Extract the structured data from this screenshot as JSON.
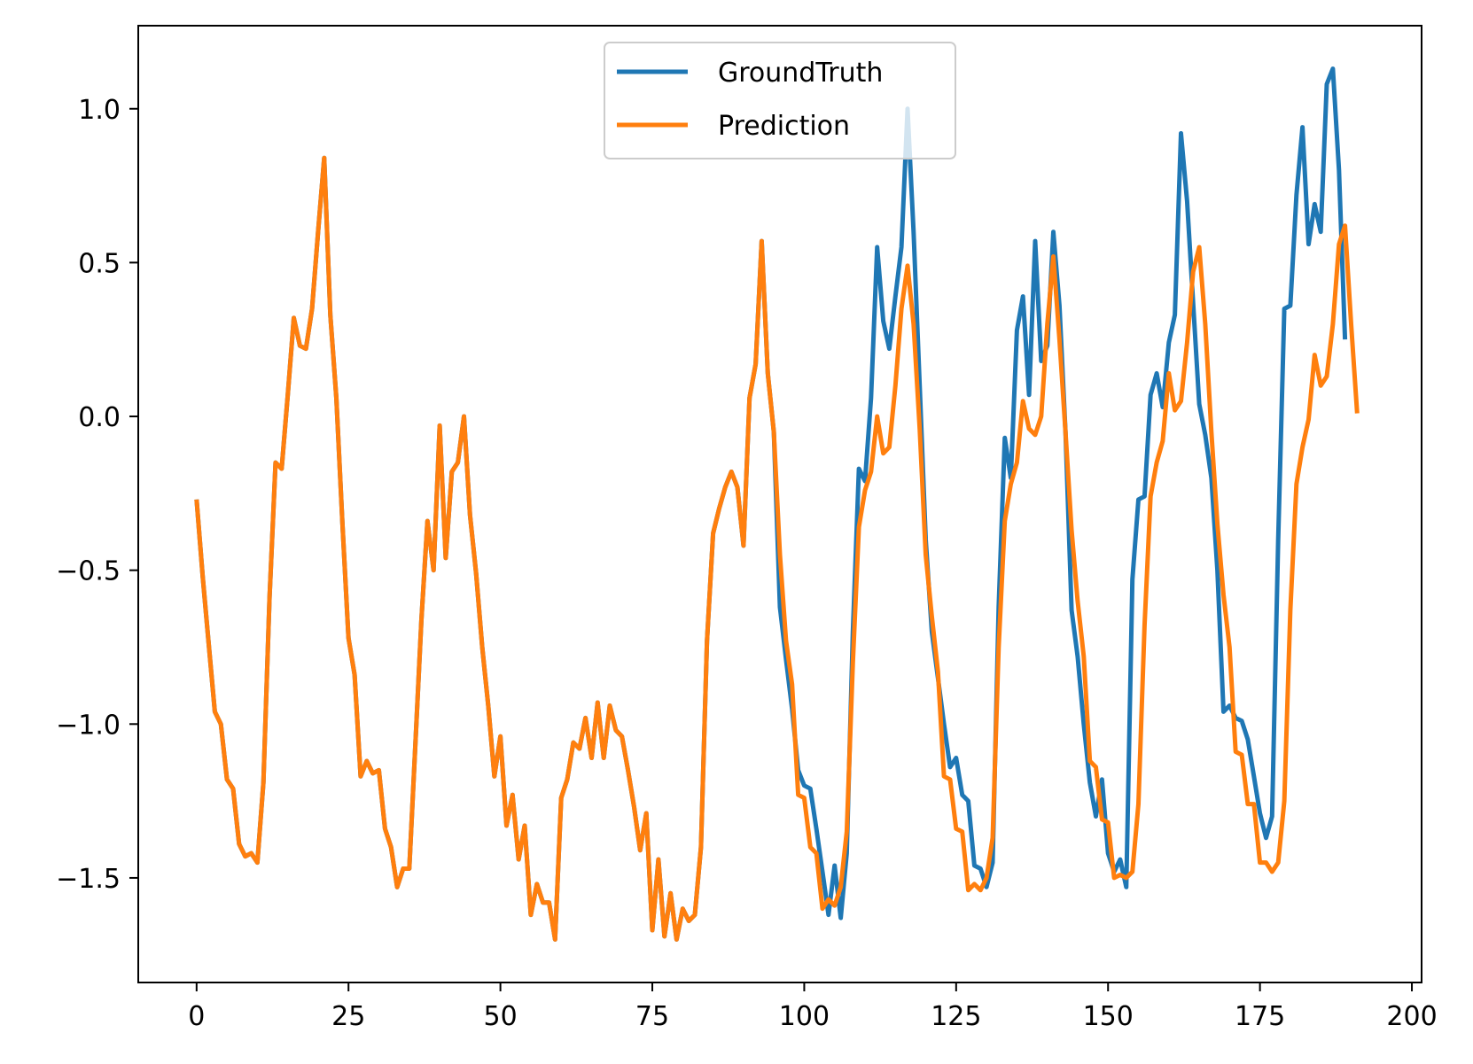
{
  "chart_data": {
    "type": "line",
    "title": "",
    "xlabel": "",
    "ylabel": "",
    "xlim": [
      -9.6,
      201.6
    ],
    "ylim": [
      -1.84,
      1.27
    ],
    "x_ticks": [
      0,
      25,
      50,
      75,
      100,
      125,
      150,
      175,
      200
    ],
    "y_ticks": [
      -1.5,
      -1.0,
      -0.5,
      0.0,
      0.5,
      1.0
    ],
    "x_tick_labels": [
      "0",
      "25",
      "50",
      "75",
      "100",
      "125",
      "150",
      "175",
      "200"
    ],
    "y_tick_labels": [
      "−1.5",
      "−1.0",
      "−0.5",
      "0.0",
      "0.5",
      "1.0"
    ],
    "grid": false,
    "legend_position": "top-center",
    "series": [
      {
        "name": "GroundTruth",
        "color": "#1f77b4",
        "values": [
          -0.27,
          -0.52,
          -0.74,
          -0.96,
          -1.0,
          -1.18,
          -1.21,
          -1.39,
          -1.43,
          -1.42,
          -1.45,
          -1.19,
          -0.59,
          -0.15,
          -0.17,
          0.07,
          0.32,
          0.23,
          0.22,
          0.35,
          0.6,
          0.84,
          0.33,
          0.06,
          -0.35,
          -0.72,
          -0.84,
          -1.17,
          -1.12,
          -1.16,
          -1.15,
          -1.34,
          -1.4,
          -1.53,
          -1.47,
          -1.47,
          -1.07,
          -0.66,
          -0.34,
          -0.5,
          -0.03,
          -0.46,
          -0.18,
          -0.15,
          0.0,
          -0.32,
          -0.51,
          -0.75,
          -0.94,
          -1.17,
          -1.04,
          -1.33,
          -1.23,
          -1.44,
          -1.33,
          -1.62,
          -1.52,
          -1.58,
          -1.58,
          -1.7,
          -1.24,
          -1.18,
          -1.06,
          -1.08,
          -0.98,
          -1.11,
          -0.93,
          -1.11,
          -0.94,
          -1.02,
          -1.04,
          -1.15,
          -1.27,
          -1.41,
          -1.29,
          -1.67,
          -1.44,
          -1.69,
          -1.55,
          -1.7,
          -1.6,
          -1.64,
          -1.62,
          -1.4,
          -0.73,
          -0.38,
          -0.3,
          -0.23,
          -0.18,
          -0.23,
          -0.42,
          0.06,
          0.17,
          0.57,
          0.14,
          -0.05,
          -0.62,
          -0.79,
          -0.95,
          -1.15,
          -1.2,
          -1.21,
          -1.34,
          -1.48,
          -1.62,
          -1.46,
          -1.63,
          -1.42,
          -0.7,
          -0.17,
          -0.21,
          0.06,
          0.55,
          0.31,
          0.22,
          0.39,
          0.55,
          1.0,
          0.6,
          0.1,
          -0.4,
          -0.7,
          -0.85,
          -1.0,
          -1.14,
          -1.11,
          -1.23,
          -1.25,
          -1.46,
          -1.47,
          -1.53,
          -1.45,
          -0.62,
          -0.07,
          -0.2,
          0.28,
          0.39,
          0.07,
          0.57,
          0.18,
          0.23,
          0.6,
          0.36,
          -0.05,
          -0.63,
          -0.78,
          -1.0,
          -1.19,
          -1.3,
          -1.18,
          -1.42,
          -1.48,
          -1.44,
          -1.53,
          -0.53,
          -0.27,
          -0.26,
          0.07,
          0.14,
          0.03,
          0.24,
          0.33,
          0.92,
          0.7,
          0.37,
          0.04,
          -0.06,
          -0.2,
          -0.5,
          -0.96,
          -0.94,
          -0.98,
          -0.99,
          -1.05,
          -1.17,
          -1.29,
          -1.37,
          -1.3,
          -0.4,
          0.35,
          0.36,
          0.72,
          0.94,
          0.56,
          0.69,
          0.6,
          1.08,
          1.13,
          0.8,
          0.25
        ]
      },
      {
        "name": "Prediction",
        "color": "#ff7f0e",
        "values": [
          -0.27,
          -0.52,
          -0.74,
          -0.96,
          -1.0,
          -1.18,
          -1.21,
          -1.39,
          -1.43,
          -1.42,
          -1.45,
          -1.19,
          -0.59,
          -0.15,
          -0.17,
          0.07,
          0.32,
          0.23,
          0.22,
          0.35,
          0.6,
          0.84,
          0.33,
          0.06,
          -0.35,
          -0.72,
          -0.84,
          -1.17,
          -1.12,
          -1.16,
          -1.15,
          -1.34,
          -1.4,
          -1.53,
          -1.47,
          -1.47,
          -1.07,
          -0.66,
          -0.34,
          -0.5,
          -0.03,
          -0.46,
          -0.18,
          -0.15,
          0.0,
          -0.32,
          -0.51,
          -0.75,
          -0.94,
          -1.17,
          -1.04,
          -1.33,
          -1.23,
          -1.44,
          -1.33,
          -1.62,
          -1.52,
          -1.58,
          -1.58,
          -1.7,
          -1.24,
          -1.18,
          -1.06,
          -1.08,
          -0.98,
          -1.11,
          -0.93,
          -1.11,
          -0.94,
          -1.02,
          -1.04,
          -1.15,
          -1.27,
          -1.41,
          -1.29,
          -1.67,
          -1.44,
          -1.69,
          -1.55,
          -1.7,
          -1.6,
          -1.64,
          -1.62,
          -1.4,
          -0.73,
          -0.38,
          -0.3,
          -0.23,
          -0.18,
          -0.23,
          -0.42,
          0.06,
          0.17,
          0.57,
          0.14,
          -0.05,
          -0.45,
          -0.73,
          -0.87,
          -1.23,
          -1.24,
          -1.4,
          -1.42,
          -1.6,
          -1.57,
          -1.59,
          -1.53,
          -1.35,
          -0.8,
          -0.36,
          -0.24,
          -0.18,
          0.0,
          -0.12,
          -0.1,
          0.1,
          0.35,
          0.49,
          0.3,
          -0.04,
          -0.45,
          -0.65,
          -0.83,
          -1.17,
          -1.18,
          -1.34,
          -1.35,
          -1.54,
          -1.52,
          -1.54,
          -1.5,
          -1.37,
          -0.75,
          -0.34,
          -0.22,
          -0.15,
          0.05,
          -0.04,
          -0.06,
          0.0,
          0.3,
          0.52,
          0.25,
          -0.05,
          -0.37,
          -0.6,
          -0.78,
          -1.12,
          -1.14,
          -1.31,
          -1.32,
          -1.5,
          -1.49,
          -1.5,
          -1.48,
          -1.26,
          -0.68,
          -0.26,
          -0.15,
          -0.08,
          0.14,
          0.02,
          0.05,
          0.24,
          0.47,
          0.55,
          0.3,
          -0.05,
          -0.35,
          -0.58,
          -0.75,
          -1.09,
          -1.1,
          -1.26,
          -1.26,
          -1.45,
          -1.45,
          -1.48,
          -1.45,
          -1.25,
          -0.63,
          -0.22,
          -0.1,
          -0.01,
          0.2,
          0.1,
          0.13,
          0.3,
          0.56,
          0.62,
          0.3,
          0.01
        ]
      }
    ]
  }
}
